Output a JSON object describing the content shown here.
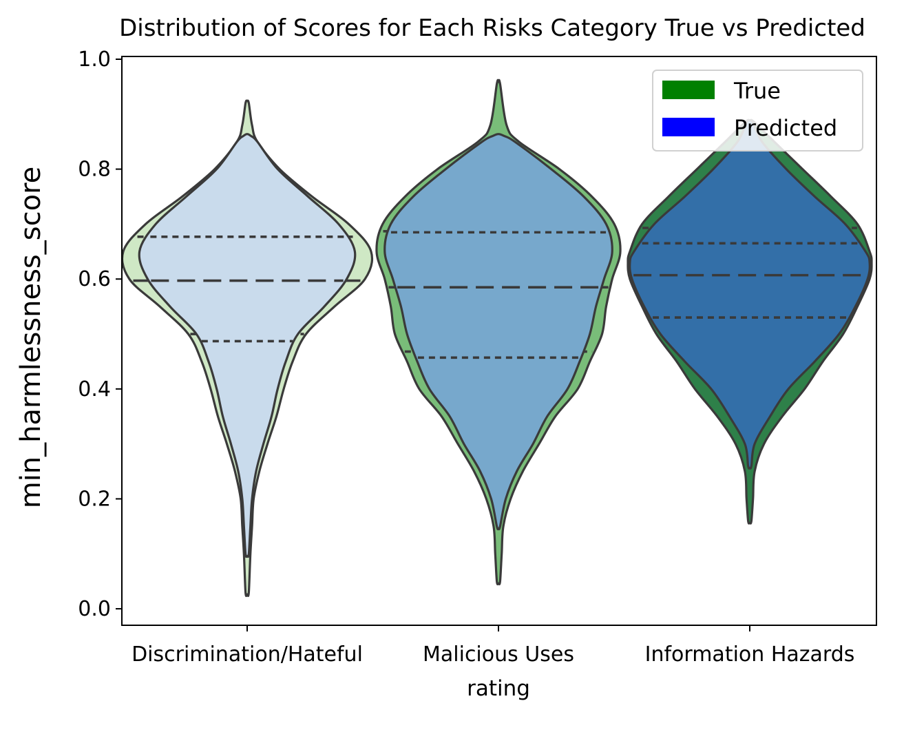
{
  "chart_data": {
    "type": "violin",
    "title": "Distribution of Scores for Each Risks Category True vs Predicted",
    "xlabel": "rating",
    "ylabel": "min_harmlessness_score",
    "categories": [
      "Discrimination/Hateful",
      "Malicious Uses",
      "Information Hazards"
    ],
    "ylim": [
      -0.03,
      1.005
    ],
    "yticks": [
      "0.0",
      "0.2",
      "0.4",
      "0.6",
      "0.8",
      "1.0"
    ],
    "grid": false,
    "legend": {
      "placement": "top-right",
      "entries": [
        {
          "label": "True",
          "color": "#008000"
        },
        {
          "label": "Predicted",
          "color": "#0000ff"
        }
      ]
    },
    "series": [
      {
        "name": "True",
        "role": "outer",
        "fill_colors": [
          "#cfe8c5",
          "#79bd79",
          "#2e8049"
        ],
        "quartiles": [
          [
            0.5,
            0.597,
            0.677
          ],
          [
            0.468,
            0.585,
            0.687
          ],
          [
            0.54,
            0.62,
            0.693
          ]
        ],
        "range": [
          [
            0.03,
            0.92
          ],
          [
            0.05,
            0.955
          ],
          [
            0.16,
            0.885
          ]
        ],
        "widths": [
          [
            [
              0.03,
              0.004
            ],
            [
              0.1,
              0.008
            ],
            [
              0.15,
              0.012
            ],
            [
              0.2,
              0.016
            ],
            [
              0.25,
              0.03
            ],
            [
              0.3,
              0.05
            ],
            [
              0.35,
              0.072
            ],
            [
              0.4,
              0.09
            ],
            [
              0.45,
              0.112
            ],
            [
              0.5,
              0.145
            ],
            [
              0.55,
              0.215
            ],
            [
              0.6,
              0.29
            ],
            [
              0.65,
              0.305
            ],
            [
              0.7,
              0.25
            ],
            [
              0.75,
              0.16
            ],
            [
              0.8,
              0.08
            ],
            [
              0.85,
              0.025
            ],
            [
              0.88,
              0.012
            ],
            [
              0.92,
              0.004
            ]
          ],
          [
            [
              0.05,
              0.004
            ],
            [
              0.1,
              0.008
            ],
            [
              0.15,
              0.012
            ],
            [
              0.2,
              0.03
            ],
            [
              0.25,
              0.06
            ],
            [
              0.3,
              0.1
            ],
            [
              0.35,
              0.14
            ],
            [
              0.4,
              0.195
            ],
            [
              0.45,
              0.225
            ],
            [
              0.5,
              0.255
            ],
            [
              0.55,
              0.265
            ],
            [
              0.6,
              0.28
            ],
            [
              0.65,
              0.3
            ],
            [
              0.7,
              0.285
            ],
            [
              0.75,
              0.23
            ],
            [
              0.8,
              0.15
            ],
            [
              0.85,
              0.05
            ],
            [
              0.88,
              0.02
            ],
            [
              0.955,
              0.004
            ]
          ],
          [
            [
              0.16,
              0.004
            ],
            [
              0.2,
              0.008
            ],
            [
              0.25,
              0.012
            ],
            [
              0.3,
              0.035
            ],
            [
              0.35,
              0.08
            ],
            [
              0.4,
              0.135
            ],
            [
              0.45,
              0.18
            ],
            [
              0.5,
              0.23
            ],
            [
              0.55,
              0.265
            ],
            [
              0.6,
              0.295
            ],
            [
              0.63,
              0.3
            ],
            [
              0.65,
              0.295
            ],
            [
              0.7,
              0.265
            ],
            [
              0.75,
              0.2
            ],
            [
              0.8,
              0.13
            ],
            [
              0.85,
              0.06
            ],
            [
              0.885,
              0.012
            ]
          ]
        ]
      },
      {
        "name": "Predicted",
        "role": "inner",
        "fill_colors": [
          "#c9dbec",
          "#77a8cc",
          "#336fa8"
        ],
        "quartiles": [
          [
            0.487,
            0.597,
            0.677
          ],
          [
            0.457,
            0.585,
            0.685
          ],
          [
            0.53,
            0.607,
            0.665
          ]
        ],
        "range": [
          [
            0.1,
            0.86
          ],
          [
            0.15,
            0.86
          ],
          [
            0.26,
            0.885
          ]
        ],
        "widths": [
          [
            [
              0.1,
              0.004
            ],
            [
              0.15,
              0.008
            ],
            [
              0.2,
              0.012
            ],
            [
              0.25,
              0.022
            ],
            [
              0.3,
              0.04
            ],
            [
              0.35,
              0.06
            ],
            [
              0.4,
              0.075
            ],
            [
              0.45,
              0.095
            ],
            [
              0.5,
              0.125
            ],
            [
              0.55,
              0.19
            ],
            [
              0.6,
              0.245
            ],
            [
              0.65,
              0.265
            ],
            [
              0.7,
              0.225
            ],
            [
              0.75,
              0.15
            ],
            [
              0.8,
              0.075
            ],
            [
              0.85,
              0.025
            ],
            [
              0.86,
              0.01
            ]
          ],
          [
            [
              0.15,
              0.004
            ],
            [
              0.2,
              0.018
            ],
            [
              0.25,
              0.045
            ],
            [
              0.3,
              0.085
            ],
            [
              0.35,
              0.12
            ],
            [
              0.4,
              0.17
            ],
            [
              0.45,
              0.2
            ],
            [
              0.5,
              0.225
            ],
            [
              0.55,
              0.24
            ],
            [
              0.6,
              0.26
            ],
            [
              0.65,
              0.28
            ],
            [
              0.7,
              0.265
            ],
            [
              0.75,
              0.21
            ],
            [
              0.8,
              0.13
            ],
            [
              0.85,
              0.04
            ],
            [
              0.86,
              0.015
            ]
          ],
          [
            [
              0.26,
              0.004
            ],
            [
              0.3,
              0.012
            ],
            [
              0.35,
              0.05
            ],
            [
              0.4,
              0.095
            ],
            [
              0.45,
              0.16
            ],
            [
              0.5,
              0.22
            ],
            [
              0.55,
              0.26
            ],
            [
              0.6,
              0.29
            ],
            [
              0.63,
              0.295
            ],
            [
              0.65,
              0.285
            ],
            [
              0.7,
              0.235
            ],
            [
              0.75,
              0.16
            ],
            [
              0.8,
              0.09
            ],
            [
              0.85,
              0.03
            ],
            [
              0.885,
              0.008
            ]
          ]
        ]
      }
    ]
  }
}
